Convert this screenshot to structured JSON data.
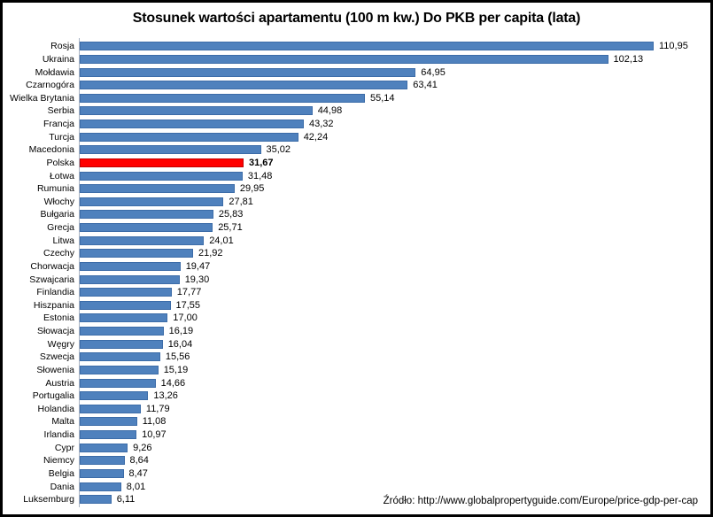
{
  "chart_data": {
    "type": "bar",
    "orientation": "horizontal",
    "title": "Stosunek wartości apartamentu (100 m kw.) Do PKB per capita (lata)",
    "source_label": "Źródło: http://www.globalpropertyguide.com/Europe/price-gdp-per-cap",
    "xlabel": "",
    "ylabel": "",
    "xlim": [
      0,
      120
    ],
    "grid": false,
    "legend": false,
    "value_decimal_separator": ",",
    "highlight_category": "Polska",
    "colors": {
      "bar": "#4f81bd",
      "bar_border": "#3c6ca8",
      "highlight": "#ff0000",
      "highlight_border": "#c00000",
      "axis_line": "#a9b4c4",
      "frame_border": "#000000",
      "background": "#ffffff"
    },
    "categories": [
      "Rosja",
      "Ukraina",
      "Mołdawia",
      "Czarnogóra",
      "Wielka Brytania",
      "Serbia",
      "Francja",
      "Turcja",
      "Macedonia",
      "Polska",
      "Łotwa",
      "Rumunia",
      "Włochy",
      "Bułgaria",
      "Grecja",
      "Litwa",
      "Czechy",
      "Chorwacja",
      "Szwajcaria",
      "Finlandia",
      "Hiszpania",
      "Estonia",
      "Słowacja",
      "Węgry",
      "Szwecja",
      "Słowenia",
      "Austria",
      "Portugalia",
      "Holandia",
      "Malta",
      "Irlandia",
      "Cypr",
      "Niemcy",
      "Belgia",
      "Dania",
      "Luksemburg"
    ],
    "values": [
      110.95,
      102.13,
      64.95,
      63.41,
      55.14,
      44.98,
      43.32,
      42.24,
      35.02,
      31.67,
      31.48,
      29.95,
      27.81,
      25.83,
      25.71,
      24.01,
      21.92,
      19.47,
      19.3,
      17.77,
      17.55,
      17.0,
      16.19,
      16.04,
      15.56,
      15.19,
      14.66,
      13.26,
      11.79,
      11.08,
      10.97,
      9.26,
      8.64,
      8.47,
      8.01,
      6.11
    ],
    "value_labels": [
      "110,95",
      "102,13",
      "64,95",
      "63,41",
      "55,14",
      "44,98",
      "43,32",
      "42,24",
      "35,02",
      "31,67",
      "31,48",
      "29,95",
      "27,81",
      "25,83",
      "25,71",
      "24,01",
      "21,92",
      "19,47",
      "19,30",
      "17,77",
      "17,55",
      "17,00",
      "16,19",
      "16,04",
      "15,56",
      "15,19",
      "14,66",
      "13,26",
      "11,79",
      "11,08",
      "10,97",
      "9,26",
      "8,64",
      "8,47",
      "8,01",
      "6,11"
    ]
  }
}
